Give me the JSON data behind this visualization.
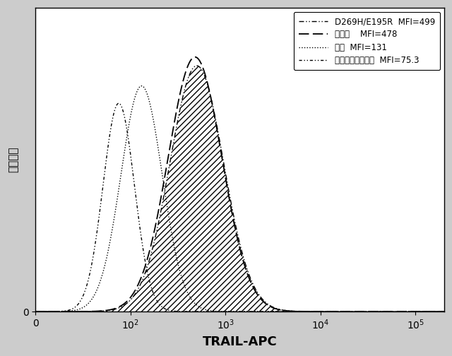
{
  "title": "",
  "xlabel": "TRAIL-APC",
  "ylabel": "カウント",
  "xlabel_fontsize": 13,
  "ylabel_fontsize": 11,
  "legend_entries": [
    "D269H/E195R  MFI=499",
    "野生型    MFI=478",
    "疑似  MFI=131",
    "アイソタイプ対照  MFI=75.3"
  ],
  "MFI": [
    499,
    478,
    131,
    75.3
  ],
  "sigma": [
    0.65,
    0.65,
    0.5,
    0.38
  ],
  "scale": [
    0.85,
    0.88,
    0.78,
    0.72
  ],
  "xmin": 10,
  "xmax": 200000,
  "ymin": 0,
  "ymax": 1.05,
  "tick_locs": [
    10,
    100,
    1000,
    10000,
    100000
  ],
  "tick_labels": [
    "0",
    "$10^2$",
    "$10^3$",
    "$10^4$",
    "$10^5$"
  ]
}
